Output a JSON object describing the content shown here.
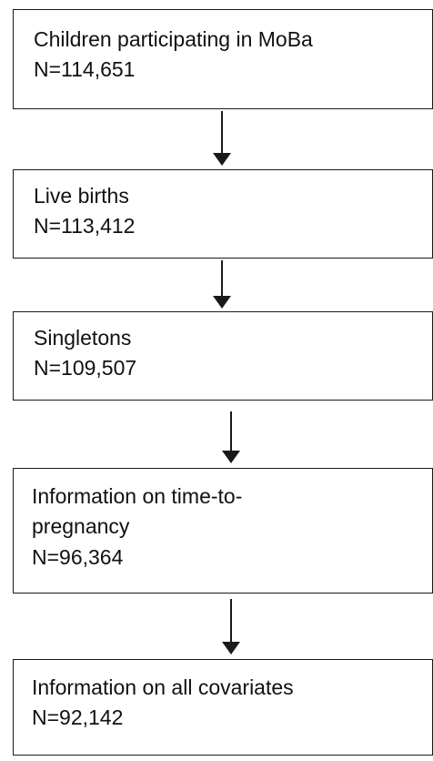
{
  "flowchart": {
    "steps": [
      {
        "label": "Children participating in MoBa",
        "count": "N=114,651"
      },
      {
        "label": "Live births",
        "count": "N=113,412"
      },
      {
        "label": "Singletons",
        "count": "N=109,507"
      },
      {
        "label_line1": "Information on time-to-",
        "label_line2": "pregnancy",
        "count": "N=96,364"
      },
      {
        "label": "Information on all covariates",
        "count": "N=92,142"
      }
    ]
  }
}
